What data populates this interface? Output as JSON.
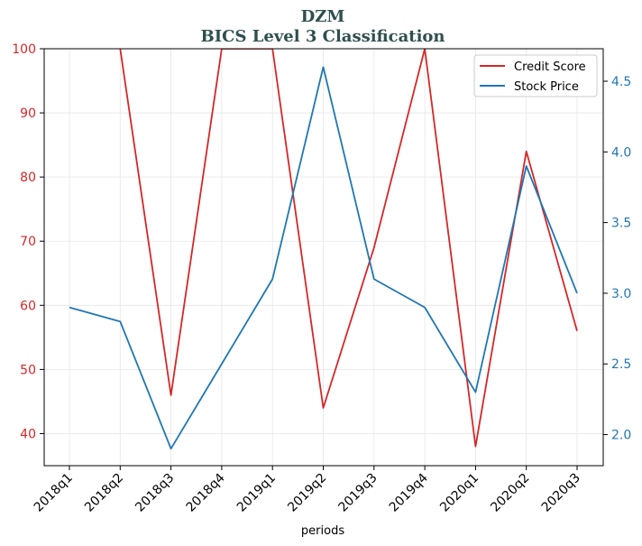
{
  "chart_data": {
    "type": "line",
    "title": "DZM",
    "subtitle": "BICS Level 3 Classification",
    "xlabel": "periods",
    "categories": [
      "2018q1",
      "2018q2",
      "2018q3",
      "2018q4",
      "2019q1",
      "2019q2",
      "2019q3",
      "2019q4",
      "2020q1",
      "2020q2",
      "2020q3"
    ],
    "y_left": {
      "range": [
        35,
        100
      ],
      "ticks": [
        40,
        50,
        60,
        70,
        80,
        90,
        100
      ],
      "color": "#d62728"
    },
    "y_right": {
      "range": [
        1.78,
        4.73
      ],
      "ticks": [
        2.0,
        2.5,
        3.0,
        3.5,
        4.0,
        4.5
      ],
      "color": "#1f77b4"
    },
    "series": [
      {
        "name": "Credit Score",
        "axis": "left",
        "color": "#d62728",
        "values": [
          null,
          100,
          46,
          100,
          100,
          44,
          69,
          100,
          38,
          84,
          56
        ]
      },
      {
        "name": "Stock Price",
        "axis": "right",
        "color": "#1f77b4",
        "values": [
          2.9,
          2.8,
          1.9,
          2.5,
          3.1,
          4.6,
          3.1,
          2.9,
          2.3,
          3.9,
          3.0
        ]
      }
    ],
    "legend": {
      "placement": "top-right"
    },
    "grid": true
  }
}
